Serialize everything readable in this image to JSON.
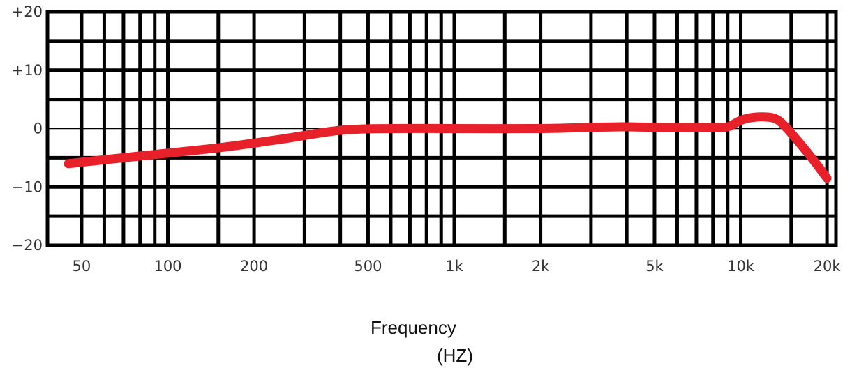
{
  "chart_data": {
    "type": "line",
    "xscale": "log",
    "xlim": [
      38,
      21500
    ],
    "ylim": [
      -20,
      20
    ],
    "x_ticks": [
      {
        "value": 50,
        "label": "50"
      },
      {
        "value": 100,
        "label": "100"
      },
      {
        "value": 200,
        "label": "200"
      },
      {
        "value": 500,
        "label": "500"
      },
      {
        "value": 1000,
        "label": "1k"
      },
      {
        "value": 2000,
        "label": "2k"
      },
      {
        "value": 5000,
        "label": "5k"
      },
      {
        "value": 10000,
        "label": "10k"
      },
      {
        "value": 20000,
        "label": "20k"
      }
    ],
    "y_ticks": [
      {
        "value": 20,
        "label": "+20"
      },
      {
        "value": 10,
        "label": "+10"
      },
      {
        "value": 0,
        "label": "0"
      },
      {
        "value": -10,
        "label": "−10"
      },
      {
        "value": -20,
        "label": "−20"
      }
    ],
    "x_gridlines": [
      50,
      60,
      70,
      80,
      90,
      100,
      150,
      200,
      300,
      400,
      500,
      600,
      700,
      800,
      900,
      1000,
      1500,
      2000,
      3000,
      4000,
      5000,
      6000,
      7000,
      8000,
      9000,
      10000,
      15000,
      20000
    ],
    "y_gridlines": [
      15,
      10,
      5,
      -5,
      -10,
      -15
    ],
    "zero_line": 0,
    "grid": true,
    "xlabel": "Frequency",
    "xlabel_unit": "(HZ)",
    "series": [
      {
        "color": "#e8202a",
        "x": [
          45,
          80,
          150,
          250,
          400,
          600,
          1000,
          2000,
          3000,
          4000,
          5000,
          7000,
          8000,
          9000,
          10000,
          11000,
          12000,
          13000,
          14000,
          16000,
          18000,
          20000
        ],
        "y": [
          -6,
          -4.7,
          -3.3,
          -1.8,
          -0.3,
          0,
          0,
          0,
          0.2,
          0.3,
          0.2,
          0.2,
          0.2,
          0.3,
          1.4,
          1.9,
          2,
          1.8,
          0.8,
          -2.4,
          -5.5,
          -8.5
        ]
      }
    ]
  }
}
